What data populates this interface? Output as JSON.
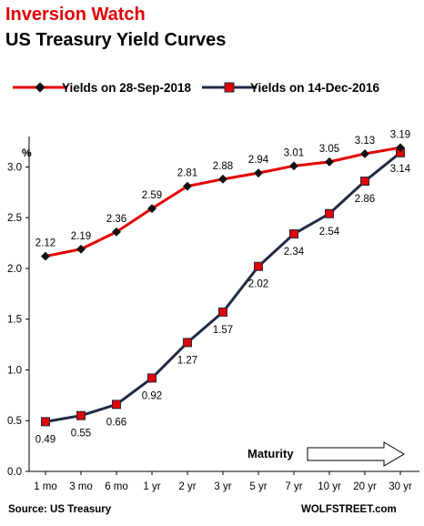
{
  "header": {
    "title": "Inversion Watch",
    "subtitle": "US Treasury Yield Curves"
  },
  "colors": {
    "series_2018": "#e30000",
    "series_2016": "#1f2a44",
    "title_red": "#e30000",
    "marker_fill_2016": "#e30000",
    "marker_fill_2018": "#111111"
  },
  "footer": {
    "source": "Source: US Treasury",
    "brand": "WOLFSTREET.com"
  },
  "annotation": {
    "maturity": "Maturity"
  },
  "chart_data": {
    "type": "line",
    "ylabel": "%",
    "ylim": [
      0,
      3.3
    ],
    "yticks": [
      "0.0",
      "0.5",
      "1.0",
      "1.5",
      "2.0",
      "2.5",
      "3.0"
    ],
    "ytick_values": [
      0,
      0.5,
      1.0,
      1.5,
      2.0,
      2.5,
      3.0
    ],
    "grid": false,
    "legend_position": "top",
    "categories": [
      "1 mo",
      "3 mo",
      "6 mo",
      "1 yr",
      "2 yr",
      "3 yr",
      "5 yr",
      "7 yr",
      "10 yr",
      "20 yr",
      "30 yr"
    ],
    "series": [
      {
        "name": "Yields on 28-Sep-2018",
        "marker": "diamond",
        "values": [
          2.12,
          2.19,
          2.36,
          2.59,
          2.81,
          2.88,
          2.94,
          3.01,
          3.05,
          3.13,
          3.19
        ],
        "labels": [
          "2.12",
          "2.19",
          "2.36",
          "2.59",
          "2.81",
          "2.88",
          "2.94",
          "3.01",
          "3.05",
          "3.13",
          "3.19"
        ]
      },
      {
        "name": "Yields on 14-Dec-2016",
        "marker": "square",
        "values": [
          0.49,
          0.55,
          0.66,
          0.92,
          1.27,
          1.57,
          2.02,
          2.34,
          2.54,
          2.86,
          3.14
        ],
        "labels": [
          "0.49",
          "0.55",
          "0.66",
          "0.92",
          "1.27",
          "1.57",
          "2.02",
          "2.34",
          "2.54",
          "2.86",
          "3.14"
        ]
      }
    ]
  }
}
